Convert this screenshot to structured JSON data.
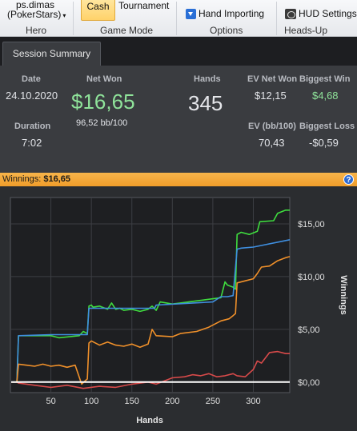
{
  "ribbon": {
    "hero": {
      "name": "ps.dimas",
      "site": "(PokerStars)",
      "dropdown": "▾",
      "label": "Hero"
    },
    "game_mode": {
      "cash_label": "Cash",
      "tournament_label": "Tournament",
      "label": "Game Mode"
    },
    "options": {
      "hand_importing_label": "Hand Importing",
      "label": "Options"
    },
    "heads_up": {
      "hud_settings_label": "HUD Settings",
      "label": "Heads-Up Display"
    }
  },
  "tabs": [
    {
      "label": "Session Summary",
      "active": true
    }
  ],
  "summary": {
    "date_label": "Date",
    "date_value": "24.10.2020",
    "duration_label": "Duration",
    "duration_value": "7:02",
    "net_won_label": "Net Won",
    "net_won_value": "$16,65",
    "net_won_bb": "96,52 bb/100",
    "hands_label": "Hands",
    "hands_value": "345",
    "ev_net_won_label": "EV Net Won",
    "ev_net_won_value": "$12,15",
    "ev_bb_label": "EV (bb/100)",
    "ev_bb_value": "70,43",
    "biggest_win_label": "Biggest Win",
    "biggest_win_value": "$4,68",
    "biggest_loss_label": "Biggest Loss",
    "biggest_loss_value": "-$0,59"
  },
  "winnings_bar": {
    "label": "Winnings:",
    "value": "$16,65",
    "help": "?"
  },
  "colors": {
    "green": "#3fdc3f",
    "blue": "#3f8fe0",
    "orange": "#f0902a",
    "red": "#d84a4a",
    "zero_line": "#ffffff",
    "highlight_green": "#8fe39a",
    "accent_orange": "#f4a63a"
  },
  "chart_data": {
    "type": "line",
    "xlabel": "Hands",
    "ylabel": "Winnings",
    "xlim": [
      0,
      345
    ],
    "ylim": [
      -1,
      17.5
    ],
    "xticks": [
      50,
      100,
      150,
      200,
      250,
      300
    ],
    "yticks": [
      0,
      5,
      10,
      15
    ],
    "ytick_labels": [
      "$0,00",
      "$5,00",
      "$10,00",
      "$15,00"
    ],
    "grid": true,
    "series": [
      {
        "key": "green",
        "x": [
          1,
          8,
          10,
          50,
          60,
          85,
          90,
          95,
          97,
          100,
          102,
          110,
          120,
          125,
          130,
          135,
          140,
          150,
          160,
          170,
          175,
          180,
          185,
          200,
          210,
          220,
          240,
          260,
          265,
          268,
          275,
          278,
          280,
          285,
          295,
          305,
          308,
          325,
          330,
          340,
          345
        ],
        "y": [
          0,
          0,
          4.4,
          4.4,
          4.2,
          4.4,
          4.8,
          4.6,
          7.2,
          7.3,
          7.1,
          7.2,
          6.9,
          7.5,
          6.9,
          7.0,
          6.8,
          6.9,
          6.7,
          6.9,
          7.2,
          6.8,
          7.6,
          7.4,
          7.5,
          7.6,
          7.8,
          8.0,
          9.5,
          9.2,
          9.0,
          8.8,
          14.0,
          14.2,
          14.0,
          14.3,
          15.2,
          15.3,
          16.0,
          16.3,
          16.3
        ]
      },
      {
        "key": "blue",
        "x": [
          1,
          8,
          10,
          50,
          85,
          90,
          95,
          97,
          100,
          110,
          170,
          178,
          180,
          250,
          260,
          268,
          275,
          280,
          285,
          300,
          345
        ],
        "y": [
          0,
          0,
          4.4,
          4.5,
          4.5,
          4.5,
          4.5,
          7.0,
          7.0,
          7.0,
          7.0,
          7.0,
          7.3,
          7.6,
          8.1,
          8.1,
          8.2,
          12.6,
          12.7,
          12.8,
          13.5
        ]
      },
      {
        "key": "orange",
        "x": [
          1,
          8,
          10,
          20,
          30,
          40,
          50,
          60,
          70,
          80,
          88,
          92,
          95,
          97,
          100,
          110,
          120,
          130,
          140,
          150,
          160,
          170,
          175,
          180,
          200,
          210,
          230,
          245,
          260,
          270,
          275,
          278,
          280,
          290,
          300,
          305,
          310,
          320,
          330,
          340,
          345
        ],
        "y": [
          0,
          0,
          1.7,
          1.6,
          1.5,
          1.7,
          1.5,
          1.6,
          1.4,
          1.6,
          -0.2,
          0.1,
          0.3,
          3.7,
          3.9,
          3.5,
          3.8,
          3.5,
          3.4,
          3.6,
          3.3,
          3.6,
          5.0,
          4.4,
          4.3,
          4.6,
          4.8,
          5.2,
          5.8,
          6.0,
          6.3,
          6.5,
          9.4,
          9.6,
          9.8,
          10.3,
          10.9,
          11.0,
          11.5,
          11.8,
          11.9
        ]
      },
      {
        "key": "red",
        "x": [
          1,
          8,
          10,
          30,
          50,
          70,
          90,
          110,
          130,
          150,
          170,
          180,
          200,
          215,
          225,
          235,
          245,
          255,
          265,
          275,
          280,
          290,
          300,
          305,
          310,
          320,
          330,
          340,
          345
        ],
        "y": [
          0,
          0,
          -0.1,
          -0.3,
          -0.5,
          -0.3,
          -0.6,
          -0.4,
          -0.5,
          -0.2,
          0,
          -0.2,
          0.4,
          0.5,
          0.7,
          0.6,
          0.8,
          0.5,
          0.6,
          0.8,
          0.6,
          0.5,
          1.2,
          2.0,
          1.8,
          2.8,
          2.9,
          2.7,
          2.7
        ]
      },
      {
        "key": "zero_line",
        "x": [
          1,
          345
        ],
        "y": [
          0,
          0
        ]
      }
    ]
  }
}
